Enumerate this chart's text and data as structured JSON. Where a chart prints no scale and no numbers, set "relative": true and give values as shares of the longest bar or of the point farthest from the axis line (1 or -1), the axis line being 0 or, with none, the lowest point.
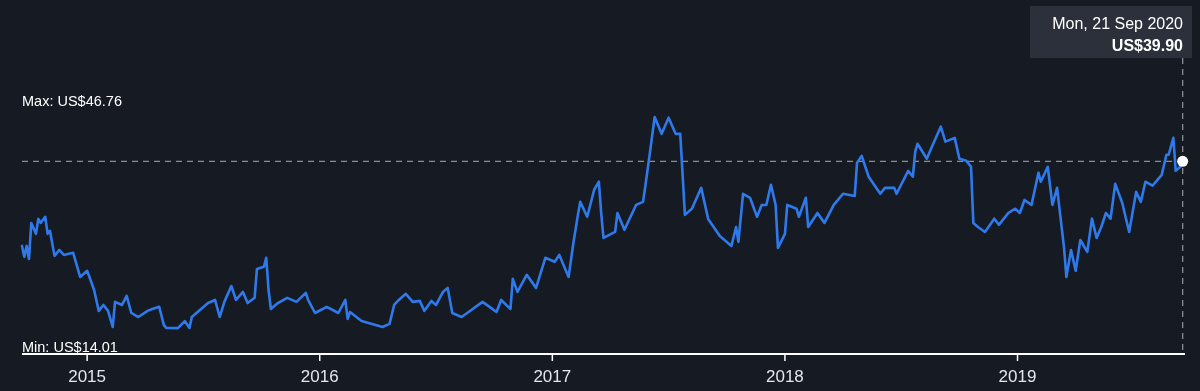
{
  "chart_data": {
    "type": "line",
    "xlim": [
      2014.72,
      2019.72
    ],
    "xticks": [
      2015,
      2016,
      2017,
      2018,
      2019
    ],
    "relative": true,
    "tick_labels": "x",
    "marker": "none",
    "line_style": "solid",
    "annotations": [
      "Max: US$46.76",
      "Min: US$14.01",
      "Mon, 21 Sep 2020",
      "US$39.90"
    ],
    "ref_lines": [
      {
        "axis": "y",
        "value": 0.813,
        "line_style": "dashed",
        "color": "#8a8e96"
      },
      {
        "axis": "x",
        "value": 2019.71,
        "line_style": "dashed",
        "color": "#8a8e96"
      }
    ],
    "series": [
      {
        "color": "#2f7aeb",
        "x": [
          2014.72,
          2014.73,
          2014.74,
          2014.75,
          2014.76,
          2014.78,
          2014.79,
          2014.8,
          2014.82,
          2014.83,
          2014.84,
          2014.86,
          2014.88,
          2014.9,
          2014.94,
          2014.96,
          2014.97,
          2015.0,
          2015.01,
          2015.03,
          2015.05,
          2015.07,
          2015.09,
          2015.11,
          2015.12,
          2015.15,
          2015.17,
          2015.19,
          2015.22,
          2015.26,
          2015.28,
          2015.31,
          2015.33,
          2015.34,
          2015.39,
          2015.42,
          2015.44,
          2015.45,
          2015.49,
          2015.52,
          2015.55,
          2015.57,
          2015.59,
          2015.62,
          2015.64,
          2015.67,
          2015.69,
          2015.72,
          2015.73,
          2015.76,
          2015.77,
          2015.78,
          2015.79,
          2015.82,
          2015.86,
          2015.9,
          2015.94,
          2015.95,
          2015.98,
          2016.03,
          2016.08,
          2016.11,
          2016.12,
          2016.13,
          2016.18,
          2016.21,
          2016.27,
          2016.3,
          2016.32,
          2016.34,
          2016.37,
          2016.4,
          2016.43,
          2016.45,
          2016.48,
          2016.5,
          2016.53,
          2016.55,
          2016.57,
          2016.61,
          2016.64,
          2016.7,
          2016.73,
          2016.76,
          2016.78,
          2016.82,
          2016.83,
          2016.85,
          2016.89,
          2016.93,
          2016.97,
          2017.01,
          2017.03,
          2017.07,
          2017.09,
          2017.11,
          2017.12,
          2017.15,
          2017.18,
          2017.2,
          2017.21,
          2017.22,
          2017.27,
          2017.28,
          2017.31,
          2017.36,
          2017.39,
          2017.4,
          2017.42,
          2017.44,
          2017.47,
          2017.5,
          2017.53,
          2017.55,
          2017.57,
          2017.6,
          2017.64,
          2017.67,
          2017.72,
          2017.77,
          2017.79,
          2017.8,
          2017.82,
          2017.85,
          2017.88,
          2017.9,
          2017.92,
          2017.94,
          2017.96,
          2017.97,
          2018.0,
          2018.01,
          2018.05,
          2018.06,
          2018.09,
          2018.1,
          2018.14,
          2018.17,
          2018.21,
          2018.25,
          2018.3,
          2018.31,
          2018.33,
          2018.36,
          2018.41,
          2018.43,
          2018.47,
          2018.48,
          2018.53,
          2018.55,
          2018.56,
          2018.57,
          2018.61,
          2018.63,
          2018.67,
          2018.69,
          2018.73,
          2018.75,
          2018.78,
          2018.8,
          2018.81,
          2018.83,
          2018.86,
          2018.9,
          2018.92,
          2018.96,
          2018.99,
          2019.01,
          2019.03,
          2019.06,
          2019.09,
          2019.1,
          2019.13,
          2019.15,
          2019.17,
          2019.19,
          2019.2,
          2019.21,
          2019.23,
          2019.25,
          2019.27,
          2019.3,
          2019.32,
          2019.34,
          2019.36,
          2019.38,
          2019.4,
          2019.42,
          2019.45,
          2019.48,
          2019.51,
          2019.53,
          2019.55,
          2019.58,
          2019.62,
          2019.64,
          2019.65,
          2019.67,
          2019.68,
          2019.7,
          2019.71
        ],
        "values": [
          0.456,
          0.41,
          0.456,
          0.401,
          0.553,
          0.507,
          0.57,
          0.553,
          0.579,
          0.507,
          0.52,
          0.414,
          0.439,
          0.418,
          0.427,
          0.359,
          0.325,
          0.351,
          0.325,
          0.27,
          0.182,
          0.207,
          0.182,
          0.114,
          0.22,
          0.207,
          0.245,
          0.173,
          0.156,
          0.182,
          0.19,
          0.199,
          0.122,
          0.11,
          0.109,
          0.139,
          0.11,
          0.156,
          0.19,
          0.215,
          0.228,
          0.156,
          0.22,
          0.287,
          0.228,
          0.262,
          0.215,
          0.237,
          0.359,
          0.368,
          0.406,
          0.27,
          0.19,
          0.215,
          0.237,
          0.22,
          0.258,
          0.228,
          0.173,
          0.199,
          0.173,
          0.228,
          0.148,
          0.177,
          0.139,
          0.131,
          0.114,
          0.127,
          0.207,
          0.228,
          0.254,
          0.22,
          0.224,
          0.182,
          0.224,
          0.207,
          0.262,
          0.279,
          0.173,
          0.156,
          0.177,
          0.22,
          0.199,
          0.177,
          0.228,
          0.19,
          0.317,
          0.262,
          0.334,
          0.279,
          0.406,
          0.389,
          0.418,
          0.325,
          0.465,
          0.587,
          0.642,
          0.579,
          0.693,
          0.727,
          0.595,
          0.49,
          0.515,
          0.595,
          0.524,
          0.629,
          0.642,
          0.71,
          0.853,
          1,
          0.929,
          0.997,
          0.929,
          0.929,
          0.587,
          0.613,
          0.701,
          0.57,
          0.498,
          0.456,
          0.536,
          0.473,
          0.676,
          0.659,
          0.579,
          0.629,
          0.629,
          0.714,
          0.629,
          0.448,
          0.507,
          0.629,
          0.613,
          0.579,
          0.659,
          0.536,
          0.595,
          0.553,
          0.629,
          0.676,
          0.667,
          0.807,
          0.836,
          0.748,
          0.676,
          0.701,
          0.701,
          0.676,
          0.773,
          0.748,
          0.853,
          0.887,
          0.824,
          0.87,
          0.959,
          0.896,
          0.912,
          0.824,
          0.815,
          0.79,
          0.553,
          0.536,
          0.515,
          0.571,
          0.545,
          0.595,
          0.613,
          0.595,
          0.65,
          0.629,
          0.765,
          0.727,
          0.79,
          0.629,
          0.701,
          0.532,
          0.448,
          0.325,
          0.439,
          0.351,
          0.481,
          0.431,
          0.571,
          0.49,
          0.536,
          0.595,
          0.571,
          0.718,
          0.638,
          0.515,
          0.684,
          0.642,
          0.727,
          0.71,
          0.756,
          0.841,
          0.841,
          0.912,
          0.773,
          0.79,
          0.813
        ]
      }
    ]
  }
}
